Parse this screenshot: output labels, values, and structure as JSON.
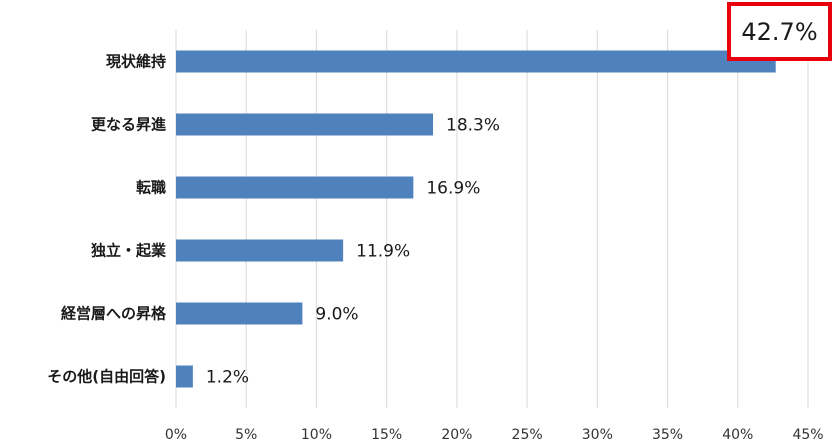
{
  "chart_data": {
    "type": "bar",
    "orientation": "horizontal",
    "categories": [
      "現状維持",
      "更なる昇進",
      "転職",
      "独立・起業",
      "経営層への昇格",
      "その他(自由回答)"
    ],
    "values": [
      42.7,
      18.3,
      16.9,
      11.9,
      9.0,
      1.2
    ],
    "value_labels": [
      "42.7%",
      "18.3%",
      "16.9%",
      "11.9%",
      "9.0%",
      "1.2%"
    ],
    "xlim": [
      0,
      45
    ],
    "x_ticks": [
      0,
      5,
      10,
      15,
      20,
      25,
      30,
      35,
      40,
      45
    ],
    "x_tick_labels": [
      "0%",
      "5%",
      "10%",
      "15%",
      "20%",
      "25%",
      "30%",
      "35%",
      "40%",
      "45%"
    ],
    "grid": "vertical",
    "legend": "none",
    "highlight": {
      "category_index": 0,
      "box_color": "#e8000d"
    },
    "bar_color": "#4f81bd",
    "grid_color": "#d9d9d9"
  }
}
